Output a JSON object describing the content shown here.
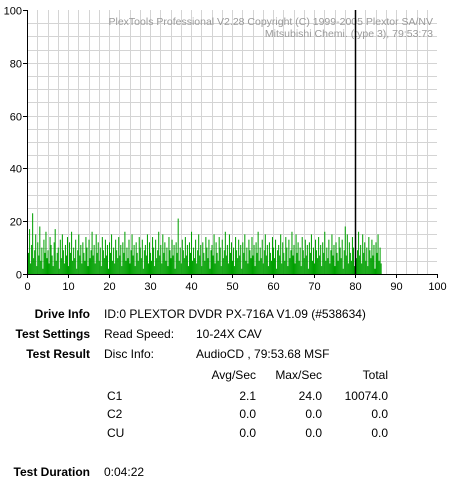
{
  "chart_data": {
    "type": "bar",
    "watermark": [
      "PlexTools Professional V2.28 Copyright (C) 1999-2005 Plextor SA/NV",
      "Mitsubishi Chemi. (type 3), 79:53:73"
    ],
    "xlim": [
      0,
      100
    ],
    "ylim": [
      0,
      100
    ],
    "x_ticks": [
      0,
      10,
      20,
      30,
      40,
      50,
      60,
      70,
      80,
      90,
      100
    ],
    "y_ticks": [
      0,
      20,
      40,
      60,
      80,
      100
    ],
    "grid": true,
    "end_marker_x": 80,
    "bar_color": "#00a000",
    "series": [
      {
        "name": "C1",
        "bin_width": 0.25,
        "x_start": 0,
        "values": [
          14,
          8,
          17,
          4,
          11,
          23,
          6,
          9,
          15,
          3,
          12,
          7,
          18,
          5,
          10,
          2,
          13,
          8,
          16,
          6,
          9,
          4,
          14,
          11,
          7,
          3,
          12,
          17,
          5,
          8,
          10,
          2,
          13,
          6,
          15,
          9,
          4,
          11,
          7,
          14,
          3,
          12,
          8,
          16,
          5,
          10,
          6,
          13,
          2,
          9,
          15,
          7,
          11,
          4,
          12,
          8,
          5,
          14,
          10,
          3,
          13,
          6,
          9,
          16,
          7,
          11,
          4,
          15,
          8,
          12,
          5,
          10,
          3,
          14,
          9,
          6,
          13,
          7,
          11,
          2,
          12,
          8,
          15,
          5,
          10,
          4,
          13,
          9,
          6,
          14,
          7,
          11,
          3,
          12,
          8,
          16,
          5,
          10,
          6,
          13,
          4,
          9,
          15,
          7,
          11,
          3,
          12,
          8,
          5,
          14,
          10,
          6,
          13,
          2,
          9,
          11,
          7,
          15,
          4,
          12,
          8,
          5,
          14,
          10,
          3,
          13,
          6,
          9,
          16,
          7,
          11,
          4,
          15,
          8,
          12,
          5,
          10,
          3,
          14,
          9,
          6,
          13,
          7,
          11,
          2,
          12,
          8,
          21,
          5,
          10,
          4,
          13,
          9,
          6,
          14,
          7,
          11,
          3,
          12,
          8,
          16,
          5,
          10,
          6,
          13,
          4,
          9,
          15,
          7,
          11,
          3,
          12,
          8,
          5,
          14,
          10,
          6,
          13,
          2,
          9,
          11,
          7,
          15,
          4,
          12,
          8,
          5,
          14,
          10,
          3,
          13,
          6,
          9,
          16,
          7,
          11,
          4,
          15,
          8,
          12,
          5,
          10,
          3,
          14,
          9,
          6,
          13,
          7,
          11,
          2,
          12,
          8,
          15,
          5,
          10,
          4,
          13,
          9,
          6,
          14,
          7,
          11,
          3,
          12,
          8,
          16,
          5,
          10,
          6,
          13,
          4,
          9,
          15,
          7,
          11,
          3,
          12,
          8,
          5,
          14,
          10,
          6,
          13,
          2,
          9,
          11,
          7,
          15,
          4,
          12,
          8,
          5,
          14,
          10,
          3,
          13,
          6,
          9,
          16,
          7,
          11,
          4,
          15,
          8,
          12,
          5,
          10,
          3,
          14,
          9,
          6,
          13,
          7,
          11,
          2,
          12,
          8,
          15,
          5,
          10,
          4,
          13,
          9,
          6,
          14,
          7,
          11,
          3,
          12,
          8,
          16,
          5,
          10,
          6,
          13,
          4,
          9,
          15,
          7,
          11,
          3,
          12,
          8,
          5,
          14,
          10,
          6,
          13,
          2,
          9,
          18,
          7,
          15,
          4,
          12,
          8,
          5,
          14,
          10,
          3,
          13,
          6,
          9,
          16,
          7,
          11,
          4,
          15,
          8,
          12,
          5,
          10,
          3,
          14,
          9,
          6,
          13,
          7,
          11,
          2,
          12,
          8,
          15,
          5,
          10,
          4
        ]
      }
    ]
  },
  "info": {
    "drive_label": "Drive Info",
    "drive_value": "ID:0 PLEXTOR DVDR PX-716A V1.09 (#538634)",
    "settings_label": "Test Settings",
    "read_speed_label": "Read Speed:",
    "read_speed_value": "10-24X CAV",
    "result_label": "Test Result",
    "disc_info_label": "Disc Info:",
    "disc_info_value": "AudioCD , 79:53.68 MSF",
    "table_headers": [
      "Avg/Sec",
      "Max/Sec",
      "Total"
    ],
    "rows": [
      {
        "name": "C1",
        "avg": "2.1",
        "max": "24.0",
        "total": "10074.0"
      },
      {
        "name": "C2",
        "avg": "0.0",
        "max": "0.0",
        "total": "0.0"
      },
      {
        "name": "CU",
        "avg": "0.0",
        "max": "0.0",
        "total": "0.0"
      }
    ],
    "duration_label": "Test Duration",
    "duration_value": "0:04:22"
  }
}
